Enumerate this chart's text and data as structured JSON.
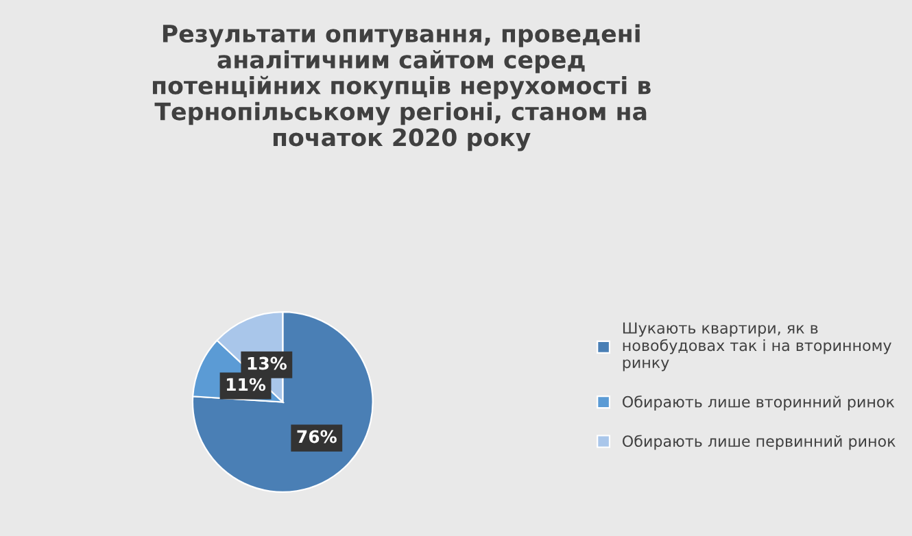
{
  "chart_data": {
    "type": "pie",
    "title": "Результати опитування, проведені\nаналітичним сайтом серед\nпотенційних покупців нерухомості в\nТернопільському регіоні, станом на\nпочаток 2020 року",
    "categories": [
      "Шукають квартири, як в\nновобудовах так і на вторинному\nринку",
      "Обирають лише вторинний ринок",
      "Обирають лише первинний ринок"
    ],
    "values": [
      76,
      11,
      13
    ],
    "colors": [
      "#4a7fb5",
      "#5b9bd5",
      "#a9c6ea"
    ],
    "value_labels": [
      "76%",
      "11%",
      "13%"
    ],
    "legend": "right"
  }
}
